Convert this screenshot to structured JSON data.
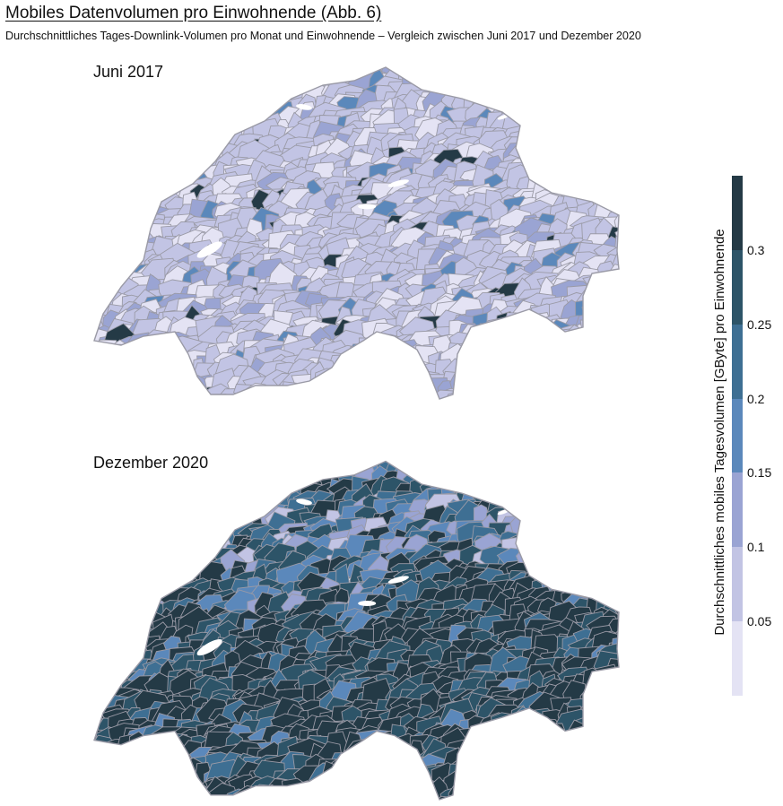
{
  "header": {
    "title": "Mobiles Datenvolumen pro Einwohnende  (Abb. 6)",
    "subtitle": "Durchschnittliches Tages-Downlink-Volumen pro Monat und Einwohnende – Vergleich zwischen Juni 2017 und Dezember 2020"
  },
  "maps": [
    {
      "label": "Juni 2017"
    },
    {
      "label": "Dezember 2020"
    }
  ],
  "legend": {
    "title": "Durchschnittliches mobiles Tagesvolumen [GByte] pro Einwohnende",
    "ticks": [
      "0.3",
      "0.25",
      "0.2",
      "0.15",
      "0.1",
      "0.05"
    ],
    "colors": [
      "#e4e3f4",
      "#c2c4e4",
      "#9aa4d3",
      "#5b88bb",
      "#3e6f93",
      "#2d5468",
      "#243a46"
    ]
  }
}
